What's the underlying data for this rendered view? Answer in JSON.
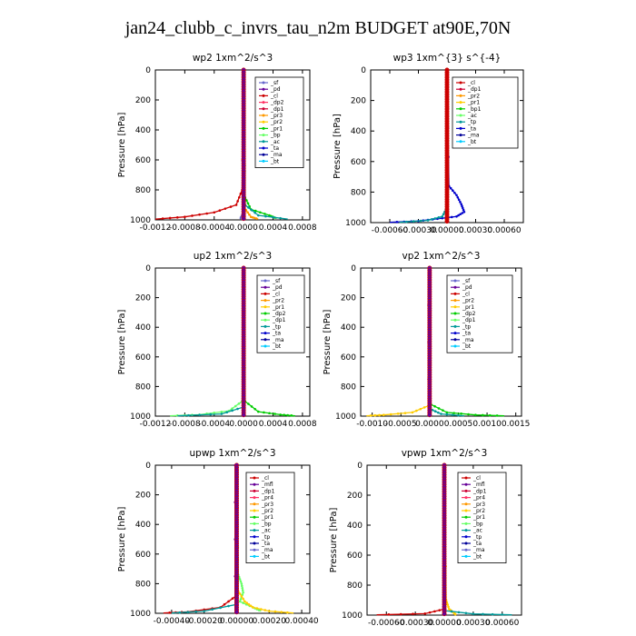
{
  "title": "jan24_clubb_c_invrs_tau_n2m  BUDGET at90E,70N",
  "chart_data": [
    {
      "type": "line",
      "title": "wp2   1xm^2/s^3",
      "ylabel": "Pressure  [hPa]",
      "xlim": [
        -0.0012,
        0.0009
      ],
      "ylim": [
        1000,
        0
      ],
      "xticks": [
        -0.0012,
        -0.0008,
        -0.0004,
        0.0,
        0.0004,
        0.0008
      ],
      "xtick_labels": [
        "-0.0012",
        "-0.0008",
        "-0.0004",
        "0.0000",
        "0.0004",
        "0.0008"
      ],
      "yticks": [
        0,
        200,
        400,
        600,
        800,
        1000
      ],
      "legend_position": "top-right",
      "series": [
        {
          "name": "_sf",
          "color": "#6666cc"
        },
        {
          "name": "_pd",
          "color": "#660099"
        },
        {
          "name": "_cl",
          "color": "#cc0000"
        },
        {
          "name": "_dp2",
          "color": "#ff3366"
        },
        {
          "name": "_dp1",
          "color": "#cc0033"
        },
        {
          "name": "_pr3",
          "color": "#ff9900"
        },
        {
          "name": "_pr2",
          "color": "#ffcc00"
        },
        {
          "name": "_pr1",
          "color": "#00cc00"
        },
        {
          "name": "_bp",
          "color": "#66ff66"
        },
        {
          "name": "_ac",
          "color": "#009999"
        },
        {
          "name": "_ta",
          "color": "#0000cc"
        },
        {
          "name": "_ma",
          "color": "#000099"
        },
        {
          "name": "_bt",
          "color": "#00ccff"
        }
      ],
      "profiles": [
        {
          "color": "#cc0000",
          "points": [
            [
              0.0,
              0
            ],
            [
              -2e-05,
              800
            ],
            [
              -0.0001,
              900
            ],
            [
              -0.0004,
              950
            ],
            [
              -0.0008,
              980
            ],
            [
              -0.0012,
              995
            ]
          ]
        },
        {
          "color": "#00cc00",
          "points": [
            [
              0.0,
              0
            ],
            [
              2e-05,
              850
            ],
            [
              0.0001,
              930
            ],
            [
              0.00035,
              970
            ],
            [
              0.00045,
              990
            ]
          ]
        },
        {
          "color": "#009999",
          "points": [
            [
              0.0,
              0
            ],
            [
              2e-05,
              900
            ],
            [
              0.0002,
              970
            ],
            [
              0.0006,
              995
            ]
          ]
        },
        {
          "color": "#ff9900",
          "points": [
            [
              0.0,
              0
            ],
            [
              1e-05,
              920
            ],
            [
              0.0001,
              980
            ],
            [
              0.0002,
              995
            ]
          ]
        },
        {
          "color": "#6666cc",
          "points": [
            [
              0.0,
              0
            ],
            [
              0.0,
              950
            ],
            [
              -5e-05,
              995
            ]
          ]
        },
        {
          "color": "#660099",
          "points": [
            [
              0.0,
              0
            ],
            [
              0.0,
              1000
            ]
          ]
        }
      ]
    },
    {
      "type": "line",
      "title": "wp3   1xm^{3} s^{-4}",
      "ylabel": "Pressure  [hPa]",
      "xlim": [
        -0.0008,
        0.0008
      ],
      "ylim": [
        1000,
        0
      ],
      "xticks": [
        -0.0006,
        -0.0003,
        0.0,
        0.0003,
        0.0006
      ],
      "xtick_labels": [
        "-0.00060",
        "-0.00030",
        "0.00000",
        "0.00030",
        "0.00060"
      ],
      "yticks": [
        0,
        200,
        400,
        600,
        800,
        1000
      ],
      "legend_position": "top-right",
      "series": [
        {
          "name": "_cl",
          "color": "#cc0000"
        },
        {
          "name": "_dp1",
          "color": "#cc0033"
        },
        {
          "name": "_pr2",
          "color": "#ff9900"
        },
        {
          "name": "_pr1",
          "color": "#ffcc00"
        },
        {
          "name": "_bp1",
          "color": "#00cc00"
        },
        {
          "name": "_ac",
          "color": "#66ff66"
        },
        {
          "name": "_tp",
          "color": "#009999"
        },
        {
          "name": "_ta",
          "color": "#0000cc"
        },
        {
          "name": "_ma",
          "color": "#000099"
        },
        {
          "name": "_bt",
          "color": "#00ccff"
        }
      ],
      "profiles": [
        {
          "color": "#0000cc",
          "points": [
            [
              0.0,
              0
            ],
            [
              2e-05,
              760
            ],
            [
              0.0001,
              820
            ],
            [
              0.00015,
              880
            ],
            [
              0.00018,
              930
            ],
            [
              0.0001,
              960
            ],
            [
              -0.0001,
              975
            ],
            [
              -0.0003,
              990
            ],
            [
              -0.0006,
              998
            ]
          ]
        },
        {
          "color": "#009999",
          "points": [
            [
              0.0,
              0
            ],
            [
              0.0,
              900
            ],
            [
              -5e-05,
              960
            ],
            [
              -0.0002,
              985
            ],
            [
              -0.0005,
              998
            ]
          ]
        },
        {
          "color": "#cc0000",
          "points": [
            [
              0.0,
              0
            ],
            [
              0.0,
              1000
            ]
          ]
        },
        {
          "color": "#cc0033",
          "points": [
            [
              1e-05,
              0
            ],
            [
              1e-05,
              1000
            ]
          ]
        }
      ]
    },
    {
      "type": "line",
      "title": "up2   1xm^2/s^3",
      "ylabel": "Pressure  [hPa]",
      "xlim": [
        -0.0012,
        0.0009
      ],
      "ylim": [
        1000,
        0
      ],
      "xticks": [
        -0.0012,
        -0.0008,
        -0.0004,
        0.0,
        0.0004,
        0.0008
      ],
      "xtick_labels": [
        "-0.0012",
        "-0.0008",
        "-0.0004",
        "0.0000",
        "0.0004",
        "0.0008"
      ],
      "yticks": [
        0,
        200,
        400,
        600,
        800,
        1000
      ],
      "legend_position": "top-right",
      "series": [
        {
          "name": "_sf",
          "color": "#6666cc"
        },
        {
          "name": "_pd",
          "color": "#660099"
        },
        {
          "name": "_cl",
          "color": "#cc0000"
        },
        {
          "name": "_pr2",
          "color": "#ff9900"
        },
        {
          "name": "_pr1",
          "color": "#ffcc00"
        },
        {
          "name": "_dp2",
          "color": "#00cc00"
        },
        {
          "name": "_dp1",
          "color": "#66ff66"
        },
        {
          "name": "_tp",
          "color": "#009999"
        },
        {
          "name": "_ta",
          "color": "#0000cc"
        },
        {
          "name": "_ma",
          "color": "#000099"
        },
        {
          "name": "_bt",
          "color": "#00ccff"
        }
      ],
      "profiles": [
        {
          "color": "#00cc00",
          "points": [
            [
              0.0,
              0
            ],
            [
              2e-05,
              900
            ],
            [
              0.0002,
              970
            ],
            [
              0.0005,
              990
            ],
            [
              0.0007,
              998
            ]
          ]
        },
        {
          "color": "#66ff66",
          "points": [
            [
              0.0,
              0
            ],
            [
              -2e-05,
              900
            ],
            [
              -0.0002,
              965
            ],
            [
              -0.0006,
              990
            ],
            [
              -0.001,
              998
            ]
          ]
        },
        {
          "color": "#009999",
          "points": [
            [
              0.0,
              0
            ],
            [
              -1e-05,
              940
            ],
            [
              -0.0003,
              985
            ],
            [
              -0.0009,
              998
            ]
          ]
        },
        {
          "color": "#cc0000",
          "points": [
            [
              0.0,
              0
            ],
            [
              0.0,
              1000
            ]
          ]
        },
        {
          "color": "#660099",
          "points": [
            [
              -1e-05,
              0
            ],
            [
              -1e-05,
              1000
            ]
          ]
        }
      ]
    },
    {
      "type": "line",
      "title": "vp2   1xm^2/s^3",
      "ylabel": "Pressure  [hPa]",
      "xlim": [
        -0.0012,
        0.0016
      ],
      "ylim": [
        1000,
        0
      ],
      "xticks": [
        -0.001,
        -0.0005,
        0.0,
        0.0005,
        0.001,
        0.0015
      ],
      "xtick_labels": [
        "-0.0010",
        "-0.0005",
        "0.0000",
        "0.0005",
        "0.0010",
        "0.0015"
      ],
      "yticks": [
        0,
        200,
        400,
        600,
        800,
        1000
      ],
      "legend_position": "top-right",
      "series": [
        {
          "name": "_sf",
          "color": "#6666cc"
        },
        {
          "name": "_pd",
          "color": "#660099"
        },
        {
          "name": "_cl",
          "color": "#cc0000"
        },
        {
          "name": "_pr2",
          "color": "#ff9900"
        },
        {
          "name": "_pr1",
          "color": "#ffcc00"
        },
        {
          "name": "_dp2",
          "color": "#00cc00"
        },
        {
          "name": "_dp1",
          "color": "#66ff66"
        },
        {
          "name": "_tp",
          "color": "#009999"
        },
        {
          "name": "_ta",
          "color": "#0000cc"
        },
        {
          "name": "_ma",
          "color": "#000099"
        },
        {
          "name": "_bt",
          "color": "#00ccff"
        }
      ],
      "profiles": [
        {
          "color": "#00cc00",
          "points": [
            [
              0.0,
              0
            ],
            [
              2e-05,
              920
            ],
            [
              0.0003,
              975
            ],
            [
              0.0008,
              992
            ],
            [
              0.0013,
              998
            ]
          ]
        },
        {
          "color": "#ffcc00",
          "points": [
            [
              0.0,
              0
            ],
            [
              -2e-05,
              930
            ],
            [
              -0.0003,
              975
            ],
            [
              -0.0008,
              992
            ],
            [
              -0.0011,
              998
            ]
          ]
        },
        {
          "color": "#009999",
          "points": [
            [
              0.0,
              0
            ],
            [
              0.0,
              950
            ],
            [
              0.0002,
              985
            ],
            [
              0.0006,
              998
            ]
          ]
        },
        {
          "color": "#cc0000",
          "points": [
            [
              0.0,
              0
            ],
            [
              0.0,
              1000
            ]
          ]
        },
        {
          "color": "#660099",
          "points": [
            [
              -2e-05,
              0
            ],
            [
              -2e-05,
              1000
            ]
          ]
        }
      ]
    },
    {
      "type": "line",
      "title": "upwp   1xm^2/s^3",
      "ylabel": "Pressure  [hPa]",
      "xlim": [
        -0.0005,
        0.00045
      ],
      "ylim": [
        1000,
        0
      ],
      "xticks": [
        -0.0004,
        -0.0002,
        0.0,
        0.0002,
        0.0004
      ],
      "xtick_labels": [
        "-0.00040",
        "-0.00020",
        "0.00000",
        "0.00020",
        "0.00040"
      ],
      "yticks": [
        0,
        200,
        400,
        600,
        800,
        1000
      ],
      "legend_position": "top-right",
      "series": [
        {
          "name": "_cl",
          "color": "#cc0000"
        },
        {
          "name": "_mfl",
          "color": "#660099"
        },
        {
          "name": "_dp1",
          "color": "#cc0033"
        },
        {
          "name": "_pr4",
          "color": "#ff3366"
        },
        {
          "name": "_pr3",
          "color": "#ff9900"
        },
        {
          "name": "_pr2",
          "color": "#ffcc00"
        },
        {
          "name": "_pr1",
          "color": "#00cc00"
        },
        {
          "name": "_bp",
          "color": "#66ff66"
        },
        {
          "name": "_ac",
          "color": "#009999"
        },
        {
          "name": "_tp",
          "color": "#0000cc"
        },
        {
          "name": "_ta",
          "color": "#000099"
        },
        {
          "name": "_ma",
          "color": "#6666cc"
        },
        {
          "name": "_bt",
          "color": "#00ccff"
        }
      ],
      "profiles": [
        {
          "color": "#66ff66",
          "points": [
            [
              0.0,
              0
            ],
            [
              1e-05,
              740
            ],
            [
              3e-05,
              800
            ],
            [
              4e-05,
              860
            ],
            [
              2e-05,
              920
            ],
            [
              0.0001,
              960
            ],
            [
              0.00015,
              985
            ]
          ]
        },
        {
          "color": "#ffcc00",
          "points": [
            [
              0.0,
              0
            ],
            [
              1e-05,
              850
            ],
            [
              5e-05,
              920
            ],
            [
              0.0001,
              960
            ],
            [
              0.0002,
              985
            ],
            [
              0.00035,
              998
            ]
          ]
        },
        {
          "color": "#cc0000",
          "points": [
            [
              0.0,
              0
            ],
            [
              0.0,
              880
            ],
            [
              -0.0001,
              960
            ],
            [
              -0.0003,
              990
            ],
            [
              -0.00045,
              998
            ]
          ]
        },
        {
          "color": "#009999",
          "points": [
            [
              0.0,
              0
            ],
            [
              0.0,
              940
            ],
            [
              -0.0002,
              985
            ],
            [
              -0.0004,
              998
            ]
          ]
        },
        {
          "color": "#660099",
          "points": [
            [
              -1e-05,
              0
            ],
            [
              -1e-05,
              1000
            ]
          ]
        }
      ]
    },
    {
      "type": "line",
      "title": "vpwp   1xm^2/s^3",
      "ylabel": "Pressure  [hPa]",
      "xlim": [
        -0.0008,
        0.0008
      ],
      "ylim": [
        1000,
        0
      ],
      "xticks": [
        -0.0006,
        -0.0003,
        0.0,
        0.0003,
        0.0006
      ],
      "xtick_labels": [
        "-0.00060",
        "-0.00030",
        "0.00000",
        "0.00030",
        "0.00060"
      ],
      "yticks": [
        0,
        200,
        400,
        600,
        800,
        1000
      ],
      "legend_position": "top-right",
      "series": [
        {
          "name": "_cl",
          "color": "#cc0000"
        },
        {
          "name": "_mfl",
          "color": "#660099"
        },
        {
          "name": "_dp1",
          "color": "#cc0033"
        },
        {
          "name": "_pr4",
          "color": "#ff3366"
        },
        {
          "name": "_pr3",
          "color": "#ff9900"
        },
        {
          "name": "_pr2",
          "color": "#ffcc00"
        },
        {
          "name": "_pr1",
          "color": "#00cc00"
        },
        {
          "name": "_bp",
          "color": "#66ff66"
        },
        {
          "name": "_ac",
          "color": "#009999"
        },
        {
          "name": "_tp",
          "color": "#0000cc"
        },
        {
          "name": "_ta",
          "color": "#000099"
        },
        {
          "name": "_ma",
          "color": "#6666cc"
        },
        {
          "name": "_bt",
          "color": "#00ccff"
        }
      ],
      "profiles": [
        {
          "color": "#ffcc00",
          "points": [
            [
              0.0,
              0
            ],
            [
              2e-05,
              900
            ],
            [
              5e-05,
              960
            ],
            [
              0.0001,
              985
            ],
            [
              0.00012,
              998
            ]
          ]
        },
        {
          "color": "#cc0000",
          "points": [
            [
              0.0,
              0
            ],
            [
              0.0,
              960
            ],
            [
              -0.0002,
              990
            ],
            [
              -0.0007,
              998
            ]
          ]
        },
        {
          "color": "#009999",
          "points": [
            [
              0.0,
              0
            ],
            [
              0.0,
              970
            ],
            [
              0.0003,
              992
            ],
            [
              0.0007,
              998
            ]
          ]
        },
        {
          "color": "#660099",
          "points": [
            [
              0.0,
              0
            ],
            [
              0.0,
              1000
            ]
          ]
        }
      ]
    }
  ]
}
